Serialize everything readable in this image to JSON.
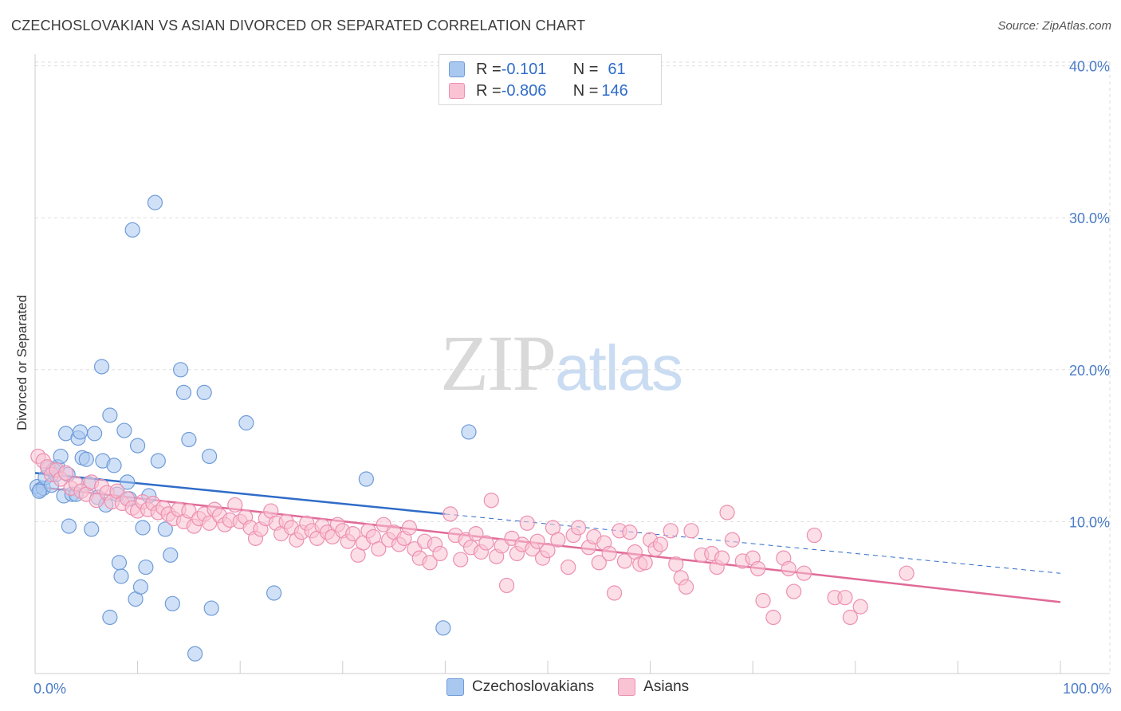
{
  "header": {
    "title": "CZECHOSLOVAKIAN VS ASIAN DIVORCED OR SEPARATED CORRELATION CHART",
    "source": "Source: ZipAtlas.com"
  },
  "watermark": {
    "zip": "ZIP",
    "atlas": "atlas"
  },
  "legend": {
    "rows": [
      {
        "r_label": "R = ",
        "r_value": "-0.101",
        "n_label": "N = ",
        "n_value": "61",
        "color": "#a9c8f0",
        "border": "#6f9bd8"
      },
      {
        "r_label": "R = ",
        "r_value": "-0.806",
        "n_label": "N = ",
        "n_value": "146",
        "color": "#f9c3d4",
        "border": "#ec8fb0"
      }
    ]
  },
  "bottom_legend": {
    "items": [
      {
        "label": "Czechoslovakians",
        "color": "#a9c8f0",
        "border": "#6f9bd8"
      },
      {
        "label": "Asians",
        "color": "#f9c3d4",
        "border": "#ec8fb0"
      }
    ]
  },
  "chart_data": {
    "type": "scatter",
    "xlabel": "",
    "ylabel": "Divorced or Separated",
    "xlim": [
      0,
      100
    ],
    "ylim": [
      0,
      42
    ],
    "x_tick_labels": [
      "0.0%",
      "100.0%"
    ],
    "y_ticks": [
      10,
      20,
      30,
      40
    ],
    "y_tick_labels": [
      "10.0%",
      "20.0%",
      "30.0%",
      "40.0%"
    ],
    "grid": true,
    "series": [
      {
        "name": "Czechoslovakians",
        "color": "#6f9bd8",
        "fill": "#a9c8f0",
        "trend": {
          "x0": 0,
          "y0": 13.2,
          "x1": 40,
          "y1": 10.5,
          "solid_until": 40,
          "dash_to": 100,
          "y_end": 6.6,
          "color": "#2f6cc8"
        },
        "points": [
          [
            0.2,
            12.3
          ],
          [
            0.5,
            12.1
          ],
          [
            0.8,
            12.2
          ],
          [
            1.0,
            12.9
          ],
          [
            1.3,
            13.5
          ],
          [
            1.6,
            12.4
          ],
          [
            2.0,
            13.1
          ],
          [
            2.2,
            13.6
          ],
          [
            2.5,
            14.3
          ],
          [
            2.8,
            11.7
          ],
          [
            3.0,
            15.8
          ],
          [
            3.3,
            9.7
          ],
          [
            3.6,
            11.8
          ],
          [
            4.0,
            11.8
          ],
          [
            4.2,
            15.5
          ],
          [
            4.4,
            15.9
          ],
          [
            4.6,
            14.2
          ],
          [
            5.0,
            14.1
          ],
          [
            5.2,
            12.5
          ],
          [
            5.5,
            9.5
          ],
          [
            5.8,
            15.8
          ],
          [
            6.1,
            11.6
          ],
          [
            6.5,
            20.2
          ],
          [
            6.6,
            14.0
          ],
          [
            6.9,
            11.1
          ],
          [
            7.3,
            17.0
          ],
          [
            7.7,
            13.7
          ],
          [
            8.0,
            11.8
          ],
          [
            8.2,
            7.3
          ],
          [
            8.4,
            6.4
          ],
          [
            8.7,
            16.0
          ],
          [
            9.0,
            12.6
          ],
          [
            9.2,
            11.5
          ],
          [
            9.5,
            29.2
          ],
          [
            9.8,
            4.9
          ],
          [
            10.0,
            15.0
          ],
          [
            10.3,
            5.7
          ],
          [
            10.5,
            9.6
          ],
          [
            10.8,
            7.0
          ],
          [
            11.1,
            11.7
          ],
          [
            11.7,
            31.0
          ],
          [
            12.0,
            14.0
          ],
          [
            12.7,
            9.5
          ],
          [
            13.2,
            7.8
          ],
          [
            13.4,
            4.6
          ],
          [
            14.2,
            20.0
          ],
          [
            14.5,
            18.5
          ],
          [
            15.0,
            15.4
          ],
          [
            15.6,
            1.3
          ],
          [
            16.5,
            18.5
          ],
          [
            17.0,
            14.3
          ],
          [
            17.2,
            4.3
          ],
          [
            20.6,
            16.5
          ],
          [
            23.3,
            5.3
          ],
          [
            32.3,
            12.8
          ],
          [
            39.8,
            3.0
          ],
          [
            42.3,
            15.9
          ],
          [
            7.3,
            3.7
          ],
          [
            3.2,
            13.1
          ],
          [
            1.8,
            13.4
          ],
          [
            0.4,
            12.0
          ]
        ]
      },
      {
        "name": "Asians",
        "color": "#ec8fb0",
        "fill": "#f9c3d4",
        "trend": {
          "x0": 0,
          "y0": 12.3,
          "x1": 100,
          "y1": 4.7,
          "color": "#e06a97"
        },
        "points": [
          [
            0.3,
            14.3
          ],
          [
            0.8,
            14.0
          ],
          [
            1.2,
            13.6
          ],
          [
            1.6,
            13.1
          ],
          [
            2.1,
            13.4
          ],
          [
            2.5,
            12.8
          ],
          [
            3.0,
            13.2
          ],
          [
            3.5,
            12.2
          ],
          [
            4.0,
            12.5
          ],
          [
            4.5,
            12.0
          ],
          [
            5.0,
            11.8
          ],
          [
            5.5,
            12.6
          ],
          [
            6.0,
            11.4
          ],
          [
            6.5,
            12.3
          ],
          [
            7.0,
            11.9
          ],
          [
            7.5,
            11.3
          ],
          [
            8.0,
            12.0
          ],
          [
            8.5,
            11.2
          ],
          [
            9.0,
            11.5
          ],
          [
            9.5,
            10.9
          ],
          [
            10.0,
            10.7
          ],
          [
            10.5,
            11.3
          ],
          [
            11.0,
            10.8
          ],
          [
            11.5,
            11.2
          ],
          [
            12.0,
            10.6
          ],
          [
            12.5,
            10.9
          ],
          [
            13.0,
            10.5
          ],
          [
            13.5,
            10.2
          ],
          [
            14.0,
            10.8
          ],
          [
            14.5,
            10.0
          ],
          [
            15.0,
            10.7
          ],
          [
            15.5,
            9.7
          ],
          [
            16.0,
            10.2
          ],
          [
            16.5,
            10.5
          ],
          [
            17.0,
            9.9
          ],
          [
            17.5,
            10.8
          ],
          [
            18.0,
            10.4
          ],
          [
            18.5,
            9.8
          ],
          [
            19.0,
            10.1
          ],
          [
            19.5,
            11.1
          ],
          [
            20.0,
            10.0
          ],
          [
            20.5,
            10.3
          ],
          [
            21.0,
            9.6
          ],
          [
            21.5,
            8.9
          ],
          [
            22.0,
            9.5
          ],
          [
            22.5,
            10.2
          ],
          [
            23.0,
            10.7
          ],
          [
            23.5,
            9.9
          ],
          [
            24.0,
            9.2
          ],
          [
            24.5,
            10.0
          ],
          [
            25.0,
            9.6
          ],
          [
            25.5,
            8.8
          ],
          [
            26.0,
            9.3
          ],
          [
            26.5,
            9.9
          ],
          [
            27.0,
            9.4
          ],
          [
            27.5,
            8.9
          ],
          [
            28.0,
            9.7
          ],
          [
            28.5,
            9.3
          ],
          [
            29.0,
            9.0
          ],
          [
            29.5,
            9.8
          ],
          [
            30.0,
            9.4
          ],
          [
            30.5,
            8.7
          ],
          [
            31.0,
            9.2
          ],
          [
            31.5,
            7.8
          ],
          [
            32.0,
            8.6
          ],
          [
            32.5,
            9.4
          ],
          [
            33.0,
            9.0
          ],
          [
            33.5,
            8.2
          ],
          [
            34.0,
            9.8
          ],
          [
            34.5,
            8.8
          ],
          [
            35.0,
            9.3
          ],
          [
            35.5,
            8.5
          ],
          [
            36.0,
            8.9
          ],
          [
            36.5,
            9.6
          ],
          [
            37.0,
            8.2
          ],
          [
            37.5,
            7.6
          ],
          [
            38.0,
            8.7
          ],
          [
            38.5,
            7.3
          ],
          [
            39.0,
            8.5
          ],
          [
            39.5,
            7.9
          ],
          [
            40.5,
            10.5
          ],
          [
            41.0,
            9.1
          ],
          [
            41.5,
            7.5
          ],
          [
            42.0,
            8.8
          ],
          [
            42.5,
            8.3
          ],
          [
            43.0,
            9.2
          ],
          [
            43.5,
            8.0
          ],
          [
            44.0,
            8.6
          ],
          [
            44.5,
            11.4
          ],
          [
            45.0,
            7.7
          ],
          [
            45.5,
            8.4
          ],
          [
            46.0,
            5.8
          ],
          [
            46.5,
            8.9
          ],
          [
            47.0,
            7.9
          ],
          [
            47.5,
            8.5
          ],
          [
            48.0,
            9.9
          ],
          [
            48.5,
            8.2
          ],
          [
            49.0,
            8.7
          ],
          [
            49.5,
            7.6
          ],
          [
            50.0,
            8.1
          ],
          [
            50.5,
            9.6
          ],
          [
            51.0,
            8.8
          ],
          [
            52.0,
            7.0
          ],
          [
            52.5,
            9.1
          ],
          [
            53.0,
            9.6
          ],
          [
            54.0,
            8.3
          ],
          [
            54.5,
            9.0
          ],
          [
            55.0,
            7.3
          ],
          [
            55.5,
            8.6
          ],
          [
            56.0,
            7.9
          ],
          [
            56.5,
            5.3
          ],
          [
            57.0,
            9.4
          ],
          [
            57.5,
            7.4
          ],
          [
            58.0,
            9.3
          ],
          [
            58.5,
            8.0
          ],
          [
            59.0,
            7.2
          ],
          [
            59.5,
            7.3
          ],
          [
            60.0,
            8.8
          ],
          [
            60.5,
            8.2
          ],
          [
            61.0,
            8.5
          ],
          [
            62.0,
            9.4
          ],
          [
            62.5,
            7.2
          ],
          [
            63.0,
            6.3
          ],
          [
            63.5,
            5.7
          ],
          [
            64.0,
            9.4
          ],
          [
            65.0,
            7.8
          ],
          [
            66.0,
            7.9
          ],
          [
            66.5,
            7.0
          ],
          [
            67.0,
            7.6
          ],
          [
            67.5,
            10.6
          ],
          [
            68.0,
            8.8
          ],
          [
            69.0,
            7.4
          ],
          [
            70.0,
            7.6
          ],
          [
            70.5,
            6.9
          ],
          [
            71.0,
            4.8
          ],
          [
            72.0,
            3.7
          ],
          [
            73.0,
            7.6
          ],
          [
            74.0,
            5.4
          ],
          [
            75.0,
            6.6
          ],
          [
            73.5,
            6.9
          ],
          [
            76.0,
            9.1
          ],
          [
            78.0,
            5.0
          ],
          [
            79.0,
            5.0
          ],
          [
            80.5,
            4.4
          ],
          [
            79.5,
            3.7
          ],
          [
            85.0,
            6.6
          ]
        ]
      }
    ]
  }
}
